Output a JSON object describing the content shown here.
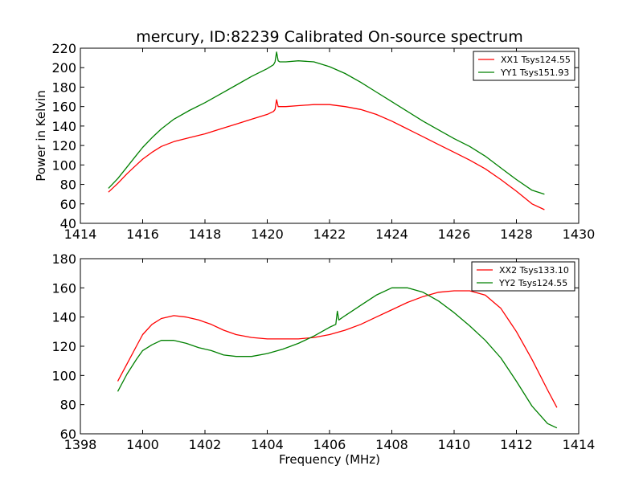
{
  "figure_title": "mercury, ID:82239 Calibrated On-source spectrum",
  "chart_data": [
    {
      "type": "line",
      "title": "mercury, ID:82239 Calibrated On-source spectrum",
      "xlabel": "",
      "ylabel": "Power in Kelvin",
      "xlim": [
        1414,
        1430
      ],
      "ylim": [
        40,
        220
      ],
      "xticks": [
        1414,
        1416,
        1418,
        1420,
        1422,
        1424,
        1426,
        1428,
        1430
      ],
      "yticks": [
        40,
        60,
        80,
        100,
        120,
        140,
        160,
        180,
        200,
        220
      ],
      "grid": false,
      "legend_position": "top-right",
      "series": [
        {
          "name": "XX1 Tsys124.55",
          "color": "#ff0000",
          "x": [
            1414.9,
            1415.2,
            1415.5,
            1415.8,
            1416.0,
            1416.3,
            1416.6,
            1417.0,
            1417.5,
            1418.0,
            1418.5,
            1419.0,
            1419.5,
            1420.0,
            1420.2,
            1420.25,
            1420.3,
            1420.35,
            1420.4,
            1420.6,
            1421.0,
            1421.5,
            1422.0,
            1422.5,
            1423.0,
            1423.5,
            1424.0,
            1424.5,
            1425.0,
            1425.5,
            1426.0,
            1426.5,
            1427.0,
            1427.5,
            1428.0,
            1428.5,
            1428.9
          ],
          "y": [
            72,
            81,
            91,
            100,
            106,
            113,
            119,
            124,
            128,
            132,
            137,
            142,
            147,
            152,
            155,
            157,
            167,
            160,
            160,
            160,
            161,
            162,
            162,
            160,
            157,
            152,
            145,
            137,
            129,
            121,
            113,
            105,
            96,
            85,
            73,
            60,
            54
          ]
        },
        {
          "name": "YY1 Tsys151.93",
          "color": "#008000",
          "x": [
            1414.9,
            1415.2,
            1415.5,
            1415.8,
            1416.0,
            1416.3,
            1416.6,
            1417.0,
            1417.5,
            1418.0,
            1418.5,
            1419.0,
            1419.5,
            1420.0,
            1420.2,
            1420.25,
            1420.3,
            1420.35,
            1420.4,
            1420.6,
            1421.0,
            1421.5,
            1422.0,
            1422.5,
            1423.0,
            1423.5,
            1424.0,
            1424.5,
            1425.0,
            1425.5,
            1426.0,
            1426.5,
            1427.0,
            1427.5,
            1428.0,
            1428.5,
            1428.9
          ],
          "y": [
            76,
            86,
            98,
            110,
            118,
            128,
            137,
            147,
            156,
            164,
            173,
            182,
            191,
            199,
            203,
            206,
            216,
            207,
            206,
            206,
            207,
            206,
            201,
            194,
            185,
            175,
            165,
            155,
            145,
            136,
            127,
            119,
            109,
            97,
            85,
            74,
            70
          ]
        }
      ]
    },
    {
      "type": "line",
      "title": "",
      "xlabel": "Frequency (MHz)",
      "ylabel": "",
      "xlim": [
        1398,
        1414
      ],
      "ylim": [
        60,
        180
      ],
      "xticks": [
        1398,
        1400,
        1402,
        1404,
        1406,
        1408,
        1410,
        1412,
        1414
      ],
      "yticks": [
        60,
        80,
        100,
        120,
        140,
        160,
        180
      ],
      "grid": false,
      "legend_position": "top-right",
      "series": [
        {
          "name": "XX2 Tsys133.10",
          "color": "#ff0000",
          "x": [
            1399.2,
            1399.5,
            1399.8,
            1400.0,
            1400.3,
            1400.6,
            1401.0,
            1401.4,
            1401.8,
            1402.2,
            1402.6,
            1403.0,
            1403.5,
            1404.0,
            1404.5,
            1405.0,
            1405.5,
            1406.0,
            1406.5,
            1407.0,
            1407.5,
            1408.0,
            1408.5,
            1409.0,
            1409.5,
            1410.0,
            1410.5,
            1411.0,
            1411.5,
            1412.0,
            1412.5,
            1413.0,
            1413.3
          ],
          "y": [
            96,
            108,
            120,
            128,
            135,
            139,
            141,
            140,
            138,
            135,
            131,
            128,
            126,
            125,
            125,
            125,
            126,
            128,
            131,
            135,
            140,
            145,
            150,
            154,
            157,
            158,
            158,
            155,
            146,
            130,
            111,
            90,
            78
          ]
        },
        {
          "name": "YY2 Tsys124.55",
          "color": "#008000",
          "x": [
            1399.2,
            1399.5,
            1399.8,
            1400.0,
            1400.3,
            1400.6,
            1401.0,
            1401.4,
            1401.8,
            1402.2,
            1402.6,
            1403.0,
            1403.5,
            1404.0,
            1404.5,
            1405.0,
            1405.5,
            1406.0,
            1406.2,
            1406.25,
            1406.3,
            1406.5,
            1407.0,
            1407.5,
            1408.0,
            1408.5,
            1409.0,
            1409.5,
            1410.0,
            1410.5,
            1411.0,
            1411.5,
            1412.0,
            1412.5,
            1413.0,
            1413.3
          ],
          "y": [
            89,
            101,
            111,
            117,
            121,
            124,
            124,
            122,
            119,
            117,
            114,
            113,
            113,
            115,
            118,
            122,
            127,
            133,
            135,
            144,
            138,
            141,
            148,
            155,
            160,
            160,
            157,
            151,
            143,
            134,
            124,
            112,
            96,
            79,
            67,
            64
          ]
        }
      ]
    }
  ]
}
